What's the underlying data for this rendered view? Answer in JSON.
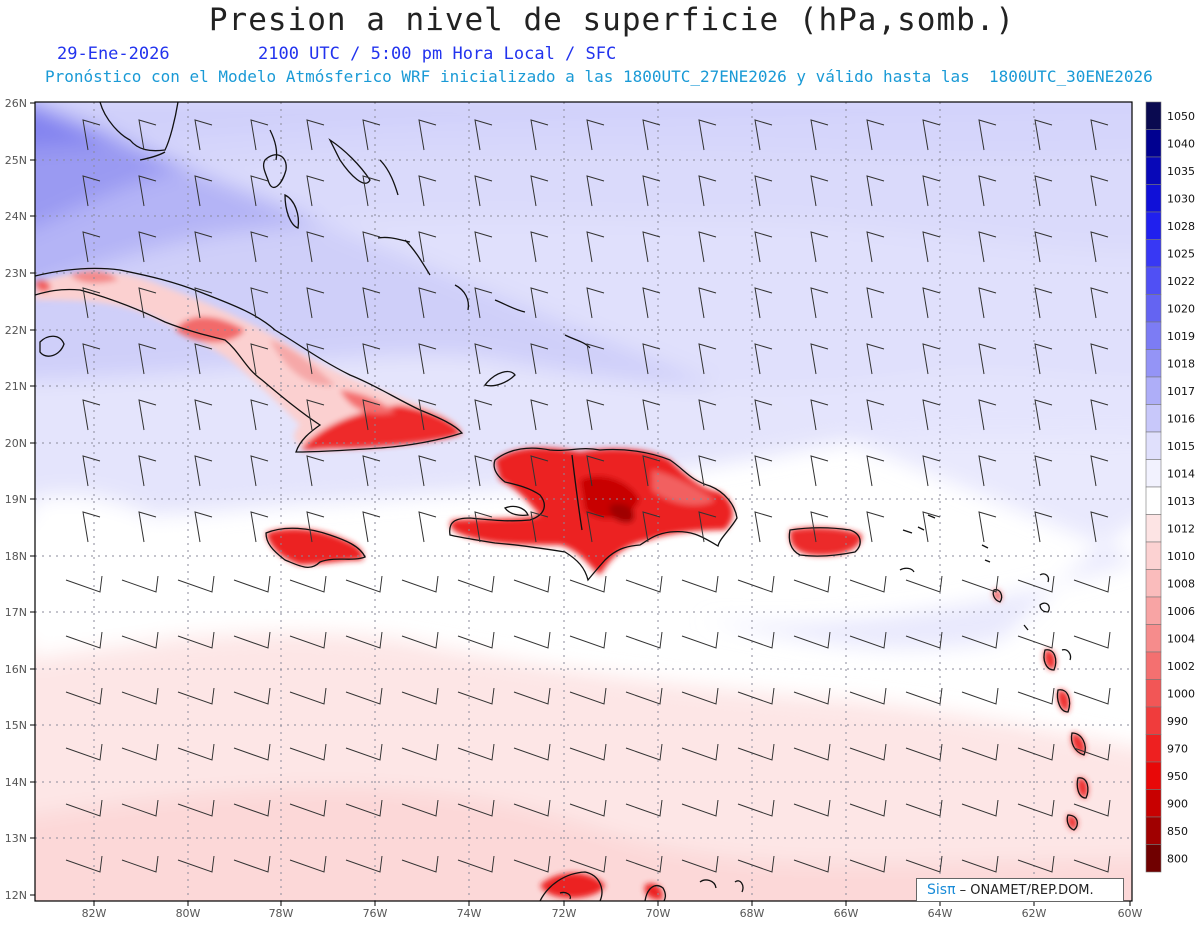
{
  "header": {
    "title": "Presion a nivel de superficie (hPa,somb.)",
    "date": "29-Ene-2026",
    "time_line": "2100 UTC / 5:00 pm Hora Local / SFC",
    "model_line": "Pronóstico con el Modelo Atmósferico WRF inicializado a las 1800UTC_27ENE2026 y válido hasta las  1800UTC_30ENE2026"
  },
  "map": {
    "lon_range": [
      -83,
      -60
    ],
    "lat_range": [
      12,
      26
    ],
    "lon_labels": [
      "82W",
      "80W",
      "78W",
      "76W",
      "74W",
      "72W",
      "70W",
      "68W",
      "66W",
      "64W",
      "62W",
      "60W"
    ],
    "lat_labels": [
      "26N",
      "25N",
      "24N",
      "23N",
      "22N",
      "21N",
      "20N",
      "19N",
      "18N",
      "17N",
      "16N",
      "15N",
      "14N",
      "13N",
      "12N"
    ],
    "grid": "dotted",
    "wind_barbs": true
  },
  "colorbar": {
    "levels": [
      "1050",
      "1040",
      "1035",
      "1030",
      "1028",
      "1025",
      "1022",
      "1020",
      "1019",
      "1018",
      "1017",
      "1016",
      "1015",
      "1014",
      "1013",
      "1012",
      "1010",
      "1008",
      "1006",
      "1004",
      "1002",
      "1000",
      "990",
      "970",
      "950",
      "900",
      "850",
      "800"
    ],
    "colors": [
      "#0a0a50",
      "#000090",
      "#0808b8",
      "#1010d8",
      "#2020ee",
      "#3838f4",
      "#5050f4",
      "#6464f2",
      "#7c7cf4",
      "#9494f6",
      "#aeaef8",
      "#c8c8fa",
      "#e0e0fc",
      "#f2f2fe",
      "#ffffff",
      "#fde4e4",
      "#fcd2d2",
      "#fabcbc",
      "#f8a4a4",
      "#f68c8c",
      "#f47070",
      "#f25656",
      "#f03c3c",
      "#ee2020",
      "#e80808",
      "#c80000",
      "#a00000",
      "#700000"
    ]
  },
  "credit": {
    "brand": "Sisπ",
    "text": "– ONAMET/REP.DOM."
  }
}
